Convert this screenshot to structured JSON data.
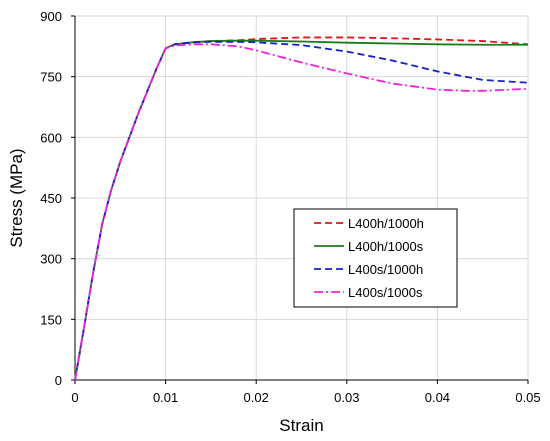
{
  "chart_data": {
    "type": "line",
    "title": "",
    "xlabel": "Strain",
    "ylabel": "Stress (MPa)",
    "xlim": [
      0,
      0.05
    ],
    "ylim": [
      0,
      900
    ],
    "x_ticks": [
      0,
      0.01,
      0.02,
      0.03,
      0.04,
      0.05
    ],
    "x_tick_labels": [
      "0",
      "0.01",
      "0.02",
      "0.03",
      "0.04",
      "0.05"
    ],
    "y_ticks": [
      0,
      150,
      300,
      450,
      600,
      750,
      900
    ],
    "y_tick_labels": [
      "0",
      "150",
      "300",
      "450",
      "600",
      "750",
      "900"
    ],
    "grid": true,
    "legend_position": "center-right",
    "series": [
      {
        "name": "L400h/1000h",
        "color": "#e8141c",
        "dash": "dash",
        "x": [
          0,
          0.001,
          0.002,
          0.003,
          0.004,
          0.005,
          0.006,
          0.007,
          0.008,
          0.009,
          0.01,
          0.011,
          0.013,
          0.015,
          0.018,
          0.02,
          0.025,
          0.03,
          0.035,
          0.04,
          0.045,
          0.05
        ],
        "y": [
          0,
          130,
          265,
          385,
          470,
          540,
          600,
          660,
          715,
          770,
          820,
          830,
          835,
          838,
          840,
          843,
          847,
          847,
          845,
          842,
          838,
          830
        ]
      },
      {
        "name": "L400h/1000s",
        "color": "#1b7a1b",
        "dash": "solid",
        "x": [
          0,
          0.001,
          0.002,
          0.003,
          0.004,
          0.005,
          0.006,
          0.007,
          0.008,
          0.009,
          0.01,
          0.011,
          0.013,
          0.015,
          0.018,
          0.02,
          0.025,
          0.03,
          0.035,
          0.04,
          0.045,
          0.05
        ],
        "y": [
          0,
          130,
          265,
          385,
          470,
          540,
          600,
          660,
          715,
          770,
          820,
          830,
          835,
          838,
          839,
          839,
          837,
          834,
          832,
          830,
          829,
          829
        ]
      },
      {
        "name": "L400s/1000h",
        "color": "#1520c8",
        "dash": "dash",
        "x": [
          0,
          0.001,
          0.002,
          0.003,
          0.004,
          0.005,
          0.006,
          0.007,
          0.008,
          0.009,
          0.01,
          0.011,
          0.013,
          0.015,
          0.018,
          0.02,
          0.025,
          0.03,
          0.035,
          0.04,
          0.045,
          0.05
        ],
        "y": [
          0,
          130,
          265,
          385,
          470,
          540,
          600,
          660,
          715,
          770,
          820,
          830,
          835,
          836,
          836,
          835,
          828,
          812,
          790,
          763,
          742,
          735
        ]
      },
      {
        "name": "L400s/1000s",
        "color": "#ee22dd",
        "dash": "dashdot",
        "x": [
          0,
          0.001,
          0.002,
          0.003,
          0.004,
          0.005,
          0.006,
          0.007,
          0.008,
          0.009,
          0.01,
          0.011,
          0.013,
          0.015,
          0.018,
          0.02,
          0.025,
          0.03,
          0.035,
          0.04,
          0.043,
          0.045,
          0.05
        ],
        "y": [
          0,
          130,
          265,
          385,
          470,
          540,
          600,
          660,
          715,
          770,
          820,
          827,
          830,
          830,
          825,
          815,
          785,
          758,
          733,
          718,
          715,
          715,
          720
        ]
      }
    ]
  }
}
